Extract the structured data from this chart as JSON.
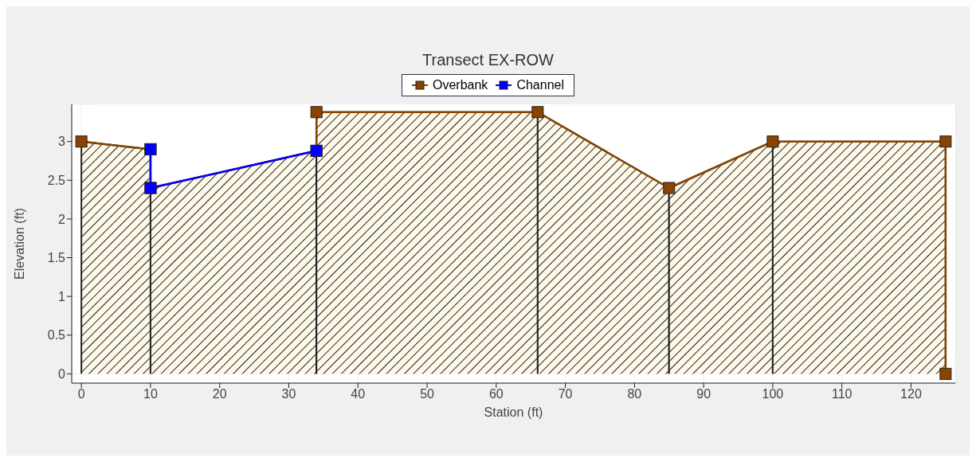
{
  "chart_data": {
    "type": "line",
    "title": "Transect EX-ROW",
    "xlabel": "Station (ft)",
    "ylabel": "Elevation (ft)",
    "series": [
      {
        "type": "area",
        "color": "#fdf8e8",
        "marker": "none",
        "x": [
          0,
          0,
          10,
          10
        ],
        "values": [
          0,
          3,
          2.9,
          0
        ]
      },
      {
        "type": "area",
        "color": "#fdf8e8",
        "marker": "none",
        "x": [
          10,
          10,
          34,
          34
        ],
        "values": [
          0,
          2.4,
          2.88,
          0
        ]
      },
      {
        "type": "area",
        "color": "#fdf8e8",
        "marker": "none",
        "x": [
          34,
          34,
          66,
          66
        ],
        "values": [
          0,
          3.38,
          3.38,
          0
        ]
      },
      {
        "type": "area",
        "color": "#fdf8e8",
        "marker": "none",
        "x": [
          66,
          66,
          85,
          85
        ],
        "values": [
          0,
          3.38,
          2.4,
          0
        ]
      },
      {
        "type": "area",
        "color": "#fdf8e8",
        "marker": "none",
        "x": [
          85,
          85,
          100,
          100
        ],
        "values": [
          0,
          2.4,
          3,
          0
        ]
      },
      {
        "type": "area",
        "color": "#fdf8e8",
        "marker": "none",
        "x": [
          100,
          100,
          125,
          125
        ],
        "values": [
          0,
          3,
          3,
          0
        ]
      },
      {
        "name": "Overbank",
        "color": "#884400",
        "x": [
          0,
          10,
          10,
          34,
          34,
          66,
          85,
          100,
          125,
          125
        ],
        "values": [
          3,
          2.9,
          2.4,
          2.88,
          3.38,
          3.38,
          2.4,
          3,
          3,
          0
        ]
      },
      {
        "name": "Channel",
        "color": "#0000ff",
        "x": [
          10,
          10,
          34
        ],
        "values": [
          2.9,
          2.4,
          2.88
        ]
      }
    ],
    "xlim": [
      -1.4,
      126.4
    ],
    "xticks": [
      0,
      10,
      20,
      30,
      40,
      50,
      60,
      70,
      80,
      90,
      100,
      110,
      120
    ],
    "ylim": [
      -0.12,
      3.48
    ],
    "yticks": [
      0,
      0.5,
      1,
      1.5,
      2,
      2.5,
      3
    ],
    "grid": true,
    "legend": "top",
    "marker": "square",
    "line_style": "solid"
  }
}
